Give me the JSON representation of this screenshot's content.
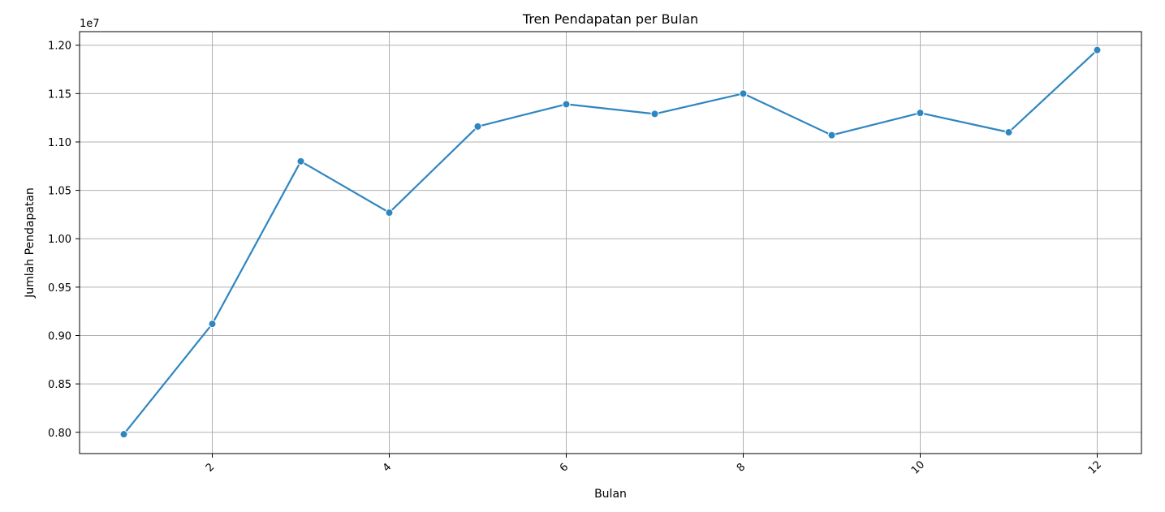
{
  "chart_data": {
    "type": "line",
    "title": "Tren Pendapatan per Bulan",
    "xlabel": "Bulan",
    "ylabel": "Jumlah Pendapatan",
    "y_offset_label": "1e7",
    "x": [
      1,
      2,
      3,
      4,
      5,
      6,
      7,
      8,
      9,
      10,
      11,
      12
    ],
    "series": [
      {
        "values": [
          7980000,
          9120000,
          10800000,
          10270000,
          11160000,
          11390000,
          11290000,
          11500000,
          11070000,
          11300000,
          11100000,
          11950000
        ]
      }
    ],
    "x_ticks": [
      2,
      4,
      6,
      8,
      10,
      12
    ],
    "x_tick_labels": [
      "2",
      "4",
      "6",
      "8",
      "10",
      "12"
    ],
    "y_ticks": [
      8000000,
      8500000,
      9000000,
      9500000,
      10000000,
      10500000,
      11000000,
      11500000,
      12000000
    ],
    "y_tick_labels": [
      "0.80",
      "0.85",
      "0.90",
      "0.95",
      "1.00",
      "1.05",
      "1.10",
      "1.15",
      "1.20"
    ],
    "xlim": [
      0.5,
      12.5
    ],
    "ylim": [
      7780000,
      12140000
    ],
    "x_tick_rotation_deg": 45,
    "grid": true,
    "line_color": "#2e86c1",
    "marker": "circle"
  }
}
